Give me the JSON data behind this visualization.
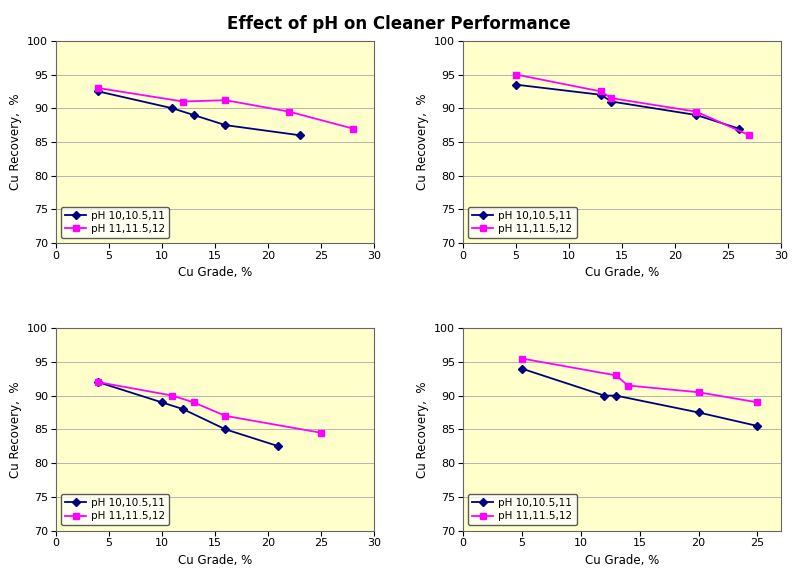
{
  "title": "Effect of pH on Cleaner Performance",
  "subplots": [
    {
      "navy_x": [
        4,
        11,
        13,
        16,
        23
      ],
      "navy_y": [
        92.5,
        90.0,
        89.0,
        87.5,
        86.0
      ],
      "magenta_x": [
        4,
        12,
        16,
        22,
        28
      ],
      "magenta_y": [
        93.0,
        91.0,
        91.2,
        89.5,
        87.0
      ],
      "xlim": [
        0,
        30
      ],
      "ylim": [
        70,
        100
      ],
      "xticks": [
        0,
        5,
        10,
        15,
        20,
        25,
        30
      ],
      "yticks": [
        70,
        75,
        80,
        85,
        90,
        95,
        100
      ]
    },
    {
      "navy_x": [
        5,
        13,
        14,
        22,
        26
      ],
      "navy_y": [
        93.5,
        92.0,
        91.0,
        89.0,
        87.0
      ],
      "magenta_x": [
        5,
        13,
        14,
        22,
        27
      ],
      "magenta_y": [
        95.0,
        92.5,
        91.5,
        89.5,
        86.0
      ],
      "xlim": [
        0,
        30
      ],
      "ylim": [
        70,
        100
      ],
      "xticks": [
        0,
        5,
        10,
        15,
        20,
        25,
        30
      ],
      "yticks": [
        70,
        75,
        80,
        85,
        90,
        95,
        100
      ]
    },
    {
      "navy_x": [
        4,
        10,
        12,
        16,
        21
      ],
      "navy_y": [
        92.0,
        89.0,
        88.0,
        85.0,
        82.5
      ],
      "magenta_x": [
        4,
        11,
        13,
        16,
        25
      ],
      "magenta_y": [
        92.0,
        90.0,
        89.0,
        87.0,
        84.5
      ],
      "xlim": [
        0,
        30
      ],
      "ylim": [
        70,
        100
      ],
      "xticks": [
        0,
        5,
        10,
        15,
        20,
        25,
        30
      ],
      "yticks": [
        70,
        75,
        80,
        85,
        90,
        95,
        100
      ]
    },
    {
      "navy_x": [
        5,
        12,
        13,
        20,
        25
      ],
      "navy_y": [
        94.0,
        90.0,
        90.0,
        87.5,
        85.5
      ],
      "magenta_x": [
        5,
        13,
        14,
        20,
        25
      ],
      "magenta_y": [
        95.5,
        93.0,
        91.5,
        90.5,
        89.0
      ],
      "xlim": [
        0,
        27
      ],
      "ylim": [
        70,
        100
      ],
      "xticks": [
        0,
        5,
        10,
        15,
        20,
        25
      ],
      "yticks": [
        70,
        75,
        80,
        85,
        90,
        95,
        100
      ]
    }
  ],
  "navy_color": "#000080",
  "magenta_color": "#FF00FF",
  "bg_color": "#FFFFCC",
  "fig_bg_color": "#FFFFFF",
  "navy_label": "pH 10,10.5,11",
  "magenta_label": "pH 11,11.5,12",
  "xlabel": "Cu Grade, %",
  "ylabel": "Cu Recovery,  %",
  "title_fontsize": 12,
  "axis_label_fontsize": 8.5,
  "tick_fontsize": 8,
  "legend_fontsize": 7.5,
  "grid_color": "#AAAAAA",
  "spine_color": "#666666",
  "marker_navy": "D",
  "marker_magenta": "s",
  "markersize": 4.5,
  "linewidth": 1.3
}
